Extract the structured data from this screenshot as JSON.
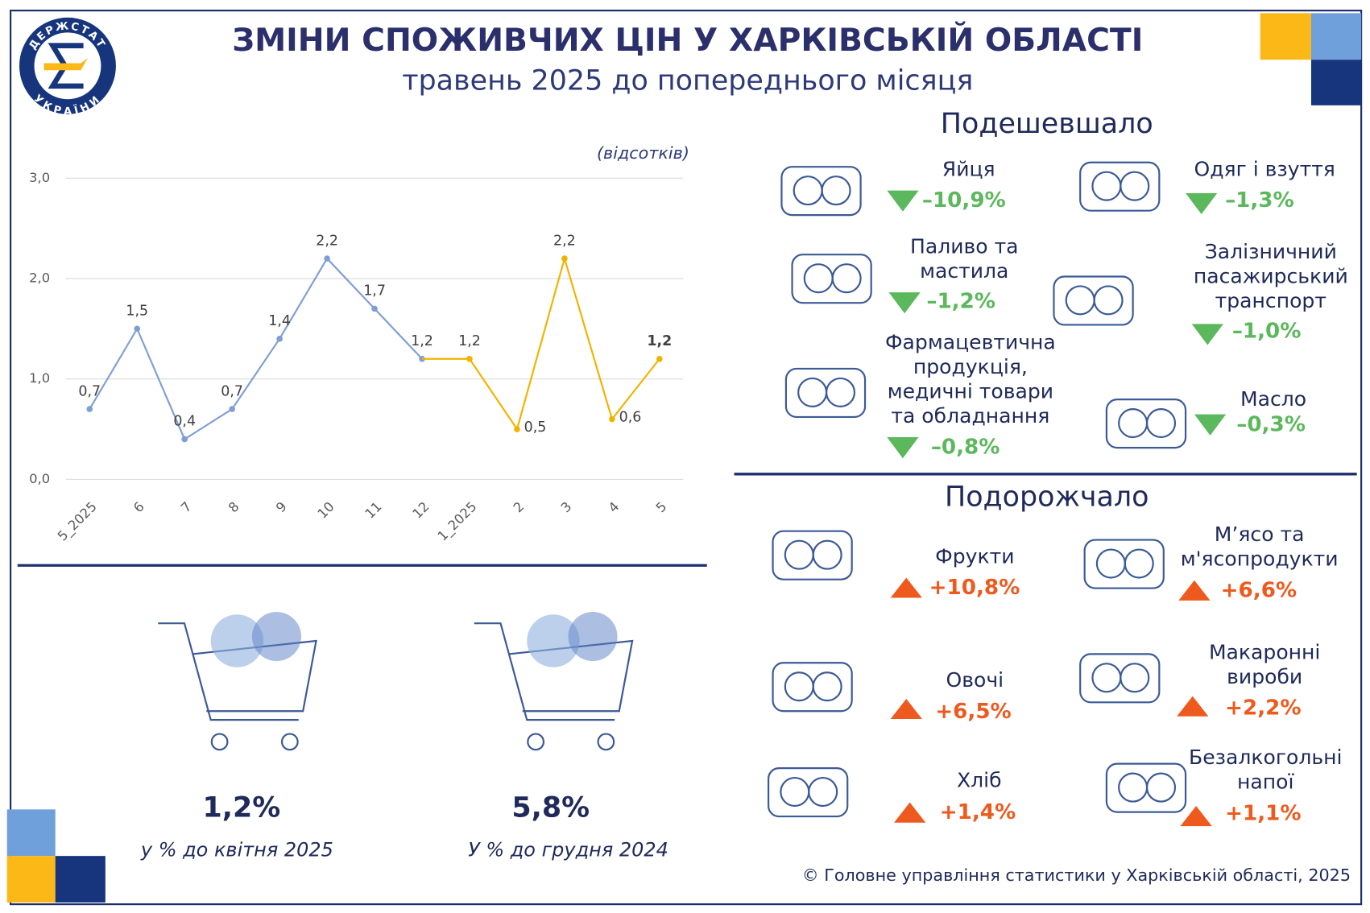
{
  "header": {
    "title": "ЗМІНИ СПОЖИВЧИХ ЦІН У ХАРКІВСЬКІЙ ОБЛАСТІ",
    "subtitle": "травень 2025 до попереднього місяця",
    "logo_top": "ДЕРЖСТАТ",
    "logo_bottom": "УКРАЇНИ"
  },
  "chart_data": {
    "type": "line",
    "unit_note": "(відсотків)",
    "categories": [
      "5_2025",
      "6",
      "7",
      "8",
      "9",
      "10",
      "11",
      "12",
      "1_2025",
      "2",
      "3",
      "4",
      "5"
    ],
    "series": [
      {
        "color": "#7f9fd4",
        "values": [
          0.7,
          1.5,
          0.4,
          0.7,
          1.4,
          2.2,
          1.7,
          1.2,
          null,
          null,
          null,
          null,
          null
        ],
        "value_labels": [
          "0,7",
          "1,5",
          "0,4",
          "0,7",
          "1,4",
          "2,2",
          "1,7",
          "1,2",
          null,
          null,
          null,
          null,
          null
        ]
      },
      {
        "color": "#f0b400",
        "values": [
          null,
          null,
          null,
          null,
          null,
          null,
          null,
          null,
          1.2,
          0.5,
          2.2,
          0.6,
          1.2
        ],
        "value_labels": [
          null,
          null,
          null,
          null,
          null,
          null,
          null,
          null,
          "1,2",
          "0,5",
          "2,2",
          "0,6",
          "1,2"
        ]
      }
    ],
    "ylim": [
      0,
      3
    ],
    "yticks": [
      {
        "value": 0,
        "label": "0,0"
      },
      {
        "value": 1,
        "label": "1,0"
      },
      {
        "value": 2,
        "label": "2,0"
      },
      {
        "value": 3,
        "label": "3,0"
      }
    ],
    "grid": true
  },
  "summary": [
    {
      "value": "1,2%",
      "label": "у % до квітня 2025"
    },
    {
      "value": "5,8%",
      "label": "У % до грудня 2024"
    }
  ],
  "decreased": {
    "title": "Подешевшало",
    "items": [
      {
        "name": [
          "Яйця"
        ],
        "change": "–10,9%"
      },
      {
        "name": [
          "Одяг і взуття"
        ],
        "change": "–1,3%"
      },
      {
        "name": [
          "Паливо та",
          "мастила"
        ],
        "change": "–1,2%"
      },
      {
        "name": [
          "Залізничний",
          "пасажирський",
          "транспорт"
        ],
        "change": "–1,0%"
      },
      {
        "name": [
          "Фармацевтична",
          "продукція,",
          "медичні товари",
          "та обладнання"
        ],
        "change": "–0,8%"
      },
      {
        "name": [
          "Масло"
        ],
        "change": "–0,3%"
      }
    ]
  },
  "increased": {
    "title": "Подорожчало",
    "items": [
      {
        "name": [
          "Фрукти"
        ],
        "change": "+10,8%"
      },
      {
        "name": [
          "М’ясо та",
          "м'ясопродукти"
        ],
        "change": "+6,6%"
      },
      {
        "name": [
          "Овочі"
        ],
        "change": "+6,5%"
      },
      {
        "name": [
          "Макаронні",
          "вироби"
        ],
        "change": "+2,2%"
      },
      {
        "name": [
          "Хліб"
        ],
        "change": "+1,4%"
      },
      {
        "name": [
          "Безалкогольні",
          "напої"
        ],
        "change": "+1,1%"
      }
    ]
  },
  "footer": "© Головне управління статистики у Харківській області, 2025"
}
